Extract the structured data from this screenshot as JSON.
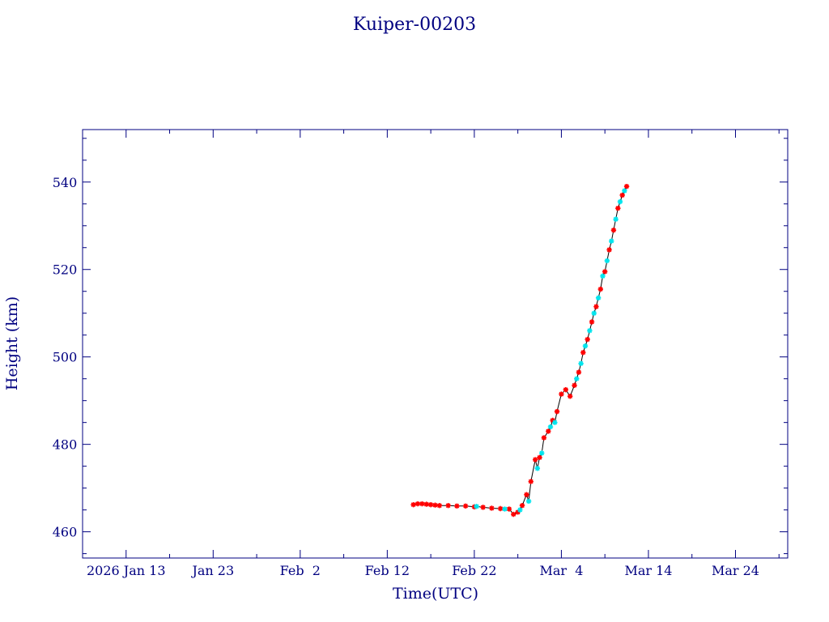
{
  "chart_data": {
    "type": "scatter",
    "title": "Kuiper-00203",
    "xlabel": "Time(UTC)",
    "ylabel": "Height (km)",
    "x_type": "date",
    "xlim": [
      "2026-01-08",
      "2026-03-30"
    ],
    "ylim": [
      454,
      552
    ],
    "x_ticks": [
      {
        "date": "2026-01-13",
        "label": "2026 Jan 13"
      },
      {
        "date": "2026-01-23",
        "label": "Jan 23"
      },
      {
        "date": "2026-02-02",
        "label": "Feb  2"
      },
      {
        "date": "2026-02-12",
        "label": "Feb 12"
      },
      {
        "date": "2026-02-22",
        "label": "Feb 22"
      },
      {
        "date": "2026-03-04",
        "label": "Mar  4"
      },
      {
        "date": "2026-03-14",
        "label": "Mar 14"
      },
      {
        "date": "2026-03-24",
        "label": "Mar 24"
      }
    ],
    "y_ticks": [
      460,
      480,
      500,
      520,
      540
    ],
    "grid": false,
    "legend": "none",
    "colors": {
      "axis": "#000080",
      "line": "#000000",
      "series_a": "#ff0000",
      "series_b": "#00e5ee"
    },
    "series": [
      {
        "marker": "star",
        "color": "#ff0000",
        "x": [
          "2026-02-15T00:00",
          "2026-02-15T12:00",
          "2026-02-16T00:00",
          "2026-02-16T12:00",
          "2026-02-17T00:00",
          "2026-02-17T12:00",
          "2026-02-18T00:00",
          "2026-02-19T00:00",
          "2026-02-20T00:00",
          "2026-02-21T00:00",
          "2026-02-22T00:00",
          "2026-02-23T00:00",
          "2026-02-24T00:00",
          "2026-02-25T00:00",
          "2026-02-26T00:00",
          "2026-02-26T12:00",
          "2026-02-27T00:00",
          "2026-02-27T12:00",
          "2026-02-28T00:00",
          "2026-02-28T12:00",
          "2026-03-01T00:00",
          "2026-03-01T12:00",
          "2026-03-02T00:00",
          "2026-03-02T12:00",
          "2026-03-03T00:00",
          "2026-03-03T12:00",
          "2026-03-04T00:00",
          "2026-03-04T12:00",
          "2026-03-05T00:00",
          "2026-03-05T12:00",
          "2026-03-06T00:00",
          "2026-03-06T12:00",
          "2026-03-07T00:00",
          "2026-03-07T12:00",
          "2026-03-08T00:00",
          "2026-03-08T12:00",
          "2026-03-09T00:00",
          "2026-03-09T12:00",
          "2026-03-10T00:00",
          "2026-03-10T12:00",
          "2026-03-11T00:00",
          "2026-03-11T12:00"
        ],
        "y": [
          466.2,
          466.4,
          466.4,
          466.3,
          466.2,
          466.1,
          466.0,
          466.0,
          465.9,
          465.9,
          465.7,
          465.6,
          465.4,
          465.3,
          465.2,
          464.0,
          464.5,
          466.0,
          468.5,
          471.5,
          476.5,
          477.0,
          481.5,
          483.0,
          485.5,
          487.5,
          491.5,
          492.5,
          491.0,
          493.5,
          496.5,
          501.0,
          504.0,
          508.0,
          511.5,
          515.5,
          519.5,
          524.5,
          529.0,
          534.0,
          537.0,
          539.0
        ]
      },
      {
        "marker": "star",
        "color": "#00e5ee",
        "x": [
          "2026-02-22T06:00",
          "2026-02-25T12:00",
          "2026-02-27T06:00",
          "2026-02-28T06:00",
          "2026-03-01T06:00",
          "2026-03-01T18:00",
          "2026-03-02T18:00",
          "2026-03-03T06:00",
          "2026-03-05T18:00",
          "2026-03-06T06:00",
          "2026-03-06T18:00",
          "2026-03-07T06:00",
          "2026-03-07T18:00",
          "2026-03-08T06:00",
          "2026-03-08T18:00",
          "2026-03-09T06:00",
          "2026-03-09T18:00",
          "2026-03-10T06:00",
          "2026-03-10T18:00",
          "2026-03-11T06:00"
        ],
        "y": [
          465.8,
          465.2,
          465.0,
          467.0,
          474.5,
          478.0,
          484.0,
          485.0,
          495.0,
          498.5,
          502.5,
          506.0,
          510.0,
          513.5,
          518.5,
          522.0,
          526.5,
          531.5,
          535.5,
          538.0
        ]
      }
    ]
  }
}
